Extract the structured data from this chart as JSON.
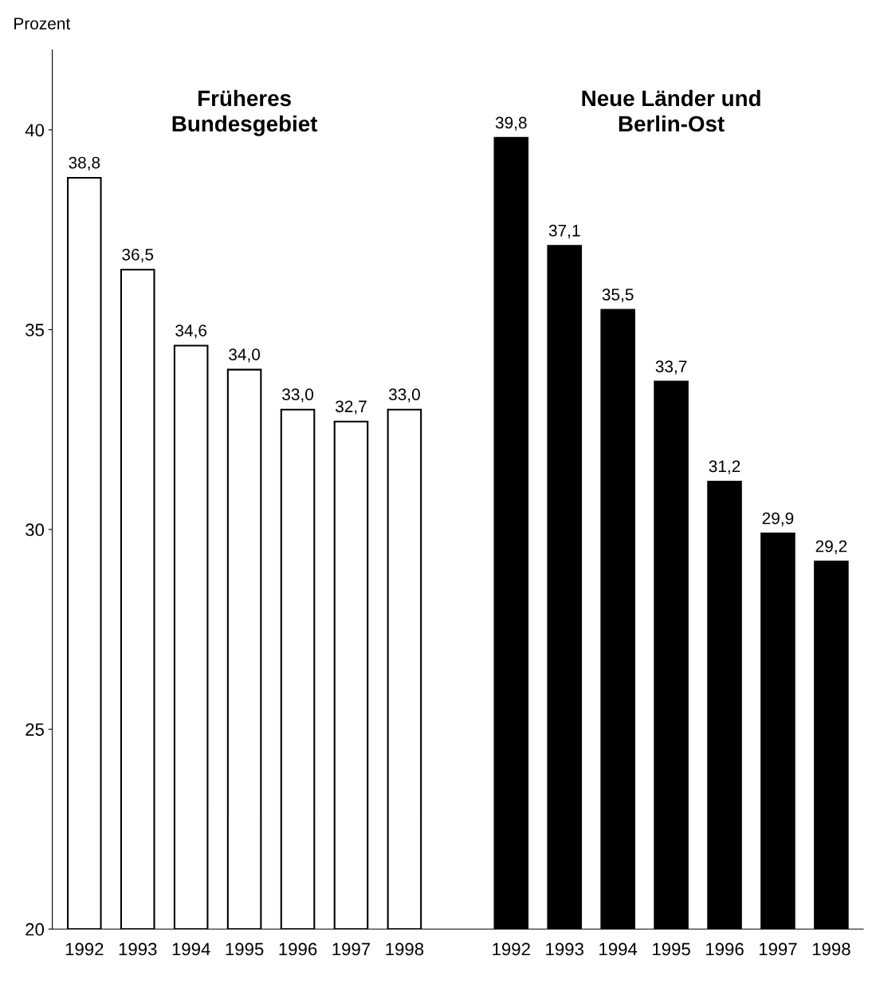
{
  "chart_data": {
    "type": "bar",
    "ylabel": "Prozent",
    "categories": [
      "1992",
      "1993",
      "1994",
      "1995",
      "1996",
      "1997",
      "1998",
      null,
      "1992",
      "1993",
      "1994",
      "1995",
      "1996",
      "1997",
      "1998"
    ],
    "values": [
      38.8,
      36.5,
      34.6,
      34.0,
      33.0,
      32.7,
      33.0,
      null,
      39.8,
      37.1,
      35.5,
      33.7,
      31.2,
      29.9,
      29.2
    ],
    "colors": [
      "#ffffff",
      "#ffffff",
      "#ffffff",
      "#ffffff",
      "#ffffff",
      "#ffffff",
      "#ffffff",
      null,
      "#000000",
      "#000000",
      "#000000",
      "#000000",
      "#000000",
      "#000000",
      "#000000"
    ],
    "value_labels": [
      "38,8",
      "36,5",
      "34,6",
      "34,0",
      "33,0",
      "32,7",
      "33,0",
      null,
      "39,8",
      "37,1",
      "35,5",
      "33,7",
      "31,2",
      "29,9",
      "29,2"
    ],
    "annotations": [
      "Früheres\nBundesgebiet",
      "Neue Länder und\nBerlin-Ost"
    ],
    "ylim": [
      20,
      42
    ],
    "yticks": [
      20,
      25,
      30,
      35,
      40
    ],
    "grid": false,
    "legend": false
  }
}
